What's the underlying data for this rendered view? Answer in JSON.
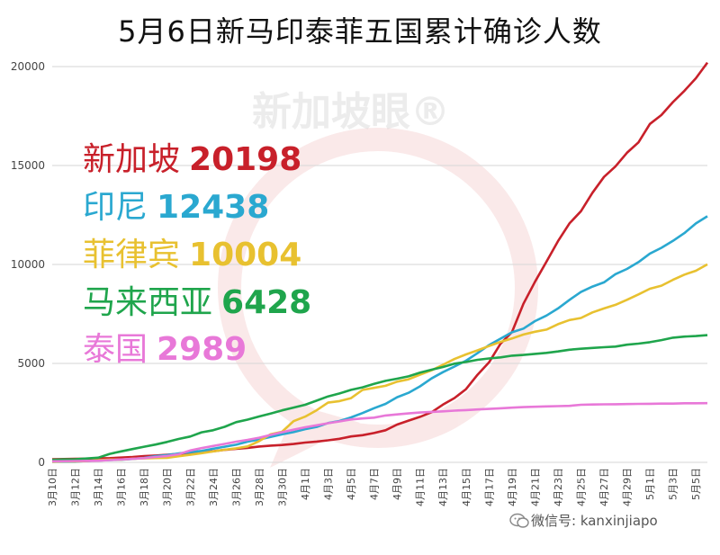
{
  "chart_data": {
    "type": "line",
    "title": "5月6日新马印泰菲五国累计确诊人数",
    "ylim": [
      0,
      20000
    ],
    "yticks": [
      0,
      5000,
      10000,
      15000,
      20000
    ],
    "grid": true,
    "x": [
      "3月10日",
      "3月11日",
      "3月12日",
      "3月13日",
      "3月14日",
      "3月15日",
      "3月16日",
      "3月17日",
      "3月18日",
      "3月19日",
      "3月20日",
      "3月21日",
      "3月22日",
      "3月23日",
      "3月24日",
      "3月25日",
      "3月26日",
      "3月27日",
      "3月28日",
      "3月29日",
      "3月30日",
      "3月31日",
      "4月1日",
      "4月2日",
      "4月3日",
      "4月4日",
      "4月5日",
      "4月6日",
      "4月7日",
      "4月8日",
      "4月9日",
      "4月10日",
      "4月11日",
      "4月12日",
      "4月13日",
      "4月14日",
      "4月15日",
      "4月16日",
      "4月17日",
      "4月18日",
      "4月19日",
      "4月20日",
      "4月21日",
      "4月22日",
      "4月23日",
      "4月24日",
      "4月25日",
      "4月26日",
      "4月27日",
      "4月28日",
      "4月29日",
      "4月30日",
      "5月1日",
      "5月2日",
      "5月3日",
      "5月4日",
      "5月5日",
      "5月6日"
    ],
    "xtick_labels": [
      "3月10日",
      "3月12日",
      "3月14日",
      "3月16日",
      "3月18日",
      "3月20日",
      "3月22日",
      "3月24日",
      "3月26日",
      "3月28日",
      "3月30日",
      "4月1日",
      "4月3日",
      "4月5日",
      "4月7日",
      "4月9日",
      "4月11日",
      "4月13日",
      "4月15日",
      "4月17日",
      "4月19日",
      "4月21日",
      "4月23日",
      "4月25日",
      "4月27日",
      "4月29日",
      "5月1日",
      "5月3日",
      "5月5日"
    ],
    "series": [
      {
        "name": "新加坡",
        "label_value": "20198",
        "color": "#c8202a",
        "values": [
          160,
          166,
          178,
          187,
          200,
          212,
          243,
          266,
          313,
          345,
          385,
          432,
          455,
          509,
          558,
          631,
          683,
          732,
          802,
          844,
          879,
          926,
          1000,
          1049,
          1114,
          1189,
          1309,
          1375,
          1481,
          1623,
          1910,
          2108,
          2299,
          2532,
          2918,
          3252,
          3699,
          4427,
          5050,
          5992,
          6588,
          8014,
          9125,
          10141,
          11178,
          12075,
          12693,
          13624,
          14423,
          14951,
          15641,
          16169,
          17101,
          17548,
          18205,
          18778,
          19410,
          20198
        ]
      },
      {
        "name": "印尼",
        "label_value": "12438",
        "color": "#2aa8d0",
        "values": [
          27,
          34,
          34,
          69,
          96,
          117,
          134,
          172,
          227,
          309,
          369,
          450,
          514,
          579,
          686,
          790,
          893,
          1046,
          1155,
          1285,
          1414,
          1528,
          1677,
          1790,
          1986,
          2092,
          2273,
          2491,
          2738,
          2956,
          3293,
          3512,
          3842,
          4241,
          4557,
          4839,
          5136,
          5516,
          5923,
          6248,
          6575,
          6760,
          7135,
          7418,
          7775,
          8211,
          8607,
          8882,
          9096,
          9511,
          9771,
          10118,
          10551,
          10843,
          11192,
          11587,
          12071,
          12438
        ]
      },
      {
        "name": "菲律宾",
        "label_value": "10004",
        "color": "#e8c130",
        "values": [
          33,
          49,
          52,
          64,
          111,
          140,
          142,
          187,
          202,
          217,
          230,
          307,
          380,
          462,
          552,
          636,
          707,
          803,
          1075,
          1418,
          1546,
          2084,
          2311,
          2633,
          3018,
          3094,
          3246,
          3660,
          3764,
          3870,
          4076,
          4195,
          4428,
          4648,
          4932,
          5223,
          5453,
          5660,
          5878,
          6087,
          6259,
          6459,
          6599,
          6710,
          6981,
          7192,
          7294,
          7579,
          7777,
          7958,
          8212,
          8488,
          8772,
          8928,
          9223,
          9485,
          9684,
          10004
        ]
      },
      {
        "name": "马来西亚",
        "label_value": "6428",
        "color": "#1fa54c",
        "values": [
          129,
          149,
          158,
          197,
          238,
          428,
          553,
          673,
          790,
          900,
          1030,
          1183,
          1306,
          1518,
          1624,
          1796,
          2031,
          2161,
          2320,
          2470,
          2626,
          2766,
          2908,
          3116,
          3333,
          3483,
          3662,
          3793,
          3963,
          4119,
          4228,
          4346,
          4530,
          4683,
          4817,
          4987,
          5072,
          5182,
          5251,
          5305,
          5389,
          5425,
          5482,
          5532,
          5603,
          5691,
          5742,
          5780,
          5820,
          5851,
          5945,
          6002,
          6071,
          6176,
          6298,
          6353,
          6383,
          6428
        ]
      },
      {
        "name": "泰国",
        "label_value": "2989",
        "color": "#e878d8",
        "values": [
          53,
          59,
          70,
          75,
          82,
          114,
          147,
          177,
          212,
          272,
          322,
          411,
          599,
          721,
          827,
          934,
          1045,
          1136,
          1245,
          1388,
          1524,
          1651,
          1771,
          1875,
          1978,
          2067,
          2169,
          2220,
          2258,
          2369,
          2423,
          2473,
          2518,
          2551,
          2579,
          2613,
          2643,
          2672,
          2700,
          2733,
          2765,
          2792,
          2811,
          2826,
          2839,
          2854,
          2907,
          2922,
          2931,
          2938,
          2947,
          2954,
          2960,
          2966,
          2969,
          2987,
          2988,
          2989
        ]
      }
    ]
  },
  "watermark": "新加坡眼®",
  "credit": "微信号: kanxinjiapo"
}
